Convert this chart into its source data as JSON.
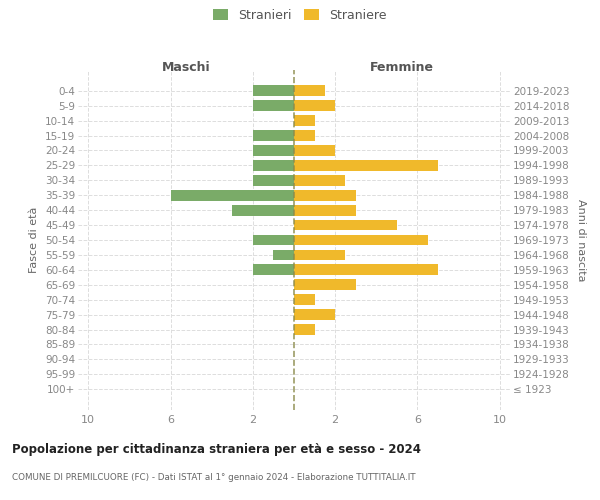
{
  "age_groups": [
    "100+",
    "95-99",
    "90-94",
    "85-89",
    "80-84",
    "75-79",
    "70-74",
    "65-69",
    "60-64",
    "55-59",
    "50-54",
    "45-49",
    "40-44",
    "35-39",
    "30-34",
    "25-29",
    "20-24",
    "15-19",
    "10-14",
    "5-9",
    "0-4"
  ],
  "birth_years": [
    "≤ 1923",
    "1924-1928",
    "1929-1933",
    "1934-1938",
    "1939-1943",
    "1944-1948",
    "1949-1953",
    "1954-1958",
    "1959-1963",
    "1964-1968",
    "1969-1973",
    "1974-1978",
    "1979-1983",
    "1984-1988",
    "1989-1993",
    "1994-1998",
    "1999-2003",
    "2004-2008",
    "2009-2013",
    "2014-2018",
    "2019-2023"
  ],
  "males": [
    0,
    0,
    0,
    0,
    0,
    0,
    0,
    0,
    2,
    1,
    2,
    0,
    3,
    6,
    2,
    2,
    2,
    2,
    0,
    2,
    2
  ],
  "females": [
    0,
    0,
    0,
    0,
    1,
    2,
    1,
    3,
    7,
    2.5,
    6.5,
    5,
    3,
    3,
    2.5,
    7,
    2,
    1,
    1,
    2,
    1.5
  ],
  "male_color": "#7aab68",
  "female_color": "#f0b92b",
  "center_line_color": "#8B8B4B",
  "title": "Popolazione per cittadinanza straniera per età e sesso - 2024",
  "subtitle": "COMUNE DI PREMILCUORE (FC) - Dati ISTAT al 1° gennaio 2024 - Elaborazione TUTTITALIA.IT",
  "legend_male": "Stranieri",
  "legend_female": "Straniere",
  "header_left": "Maschi",
  "header_right": "Femmine",
  "ylabel_left": "Fasce di età",
  "ylabel_right": "Anni di nascita",
  "xlim": 10.5,
  "background_color": "#ffffff",
  "grid_color": "#dddddd",
  "axis_label_color": "#666666",
  "tick_color": "#888888"
}
